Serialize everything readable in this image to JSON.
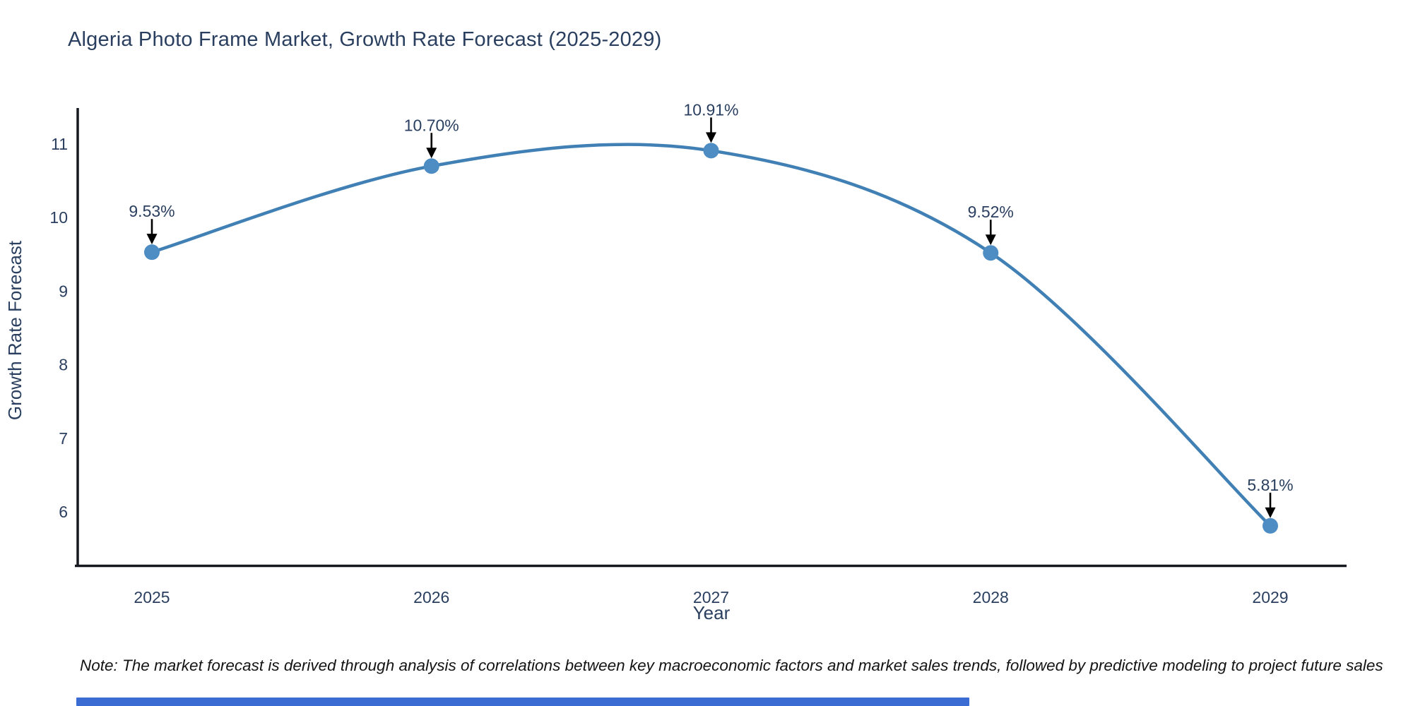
{
  "title": "Algeria Photo Frame Market, Growth Rate Forecast (2025-2029)",
  "note": "Note: The market forecast is derived through analysis of correlations between key macroeconomic factors and market sales trends, followed by predictive modeling to project future sales",
  "colors": {
    "title_text": "#2a3f5f",
    "tick_text": "#2a3f5f",
    "axis_title_text": "#2a3f5f",
    "annotation_text": "#2a3f5f",
    "spine": "#15181e",
    "line": "#4180b4",
    "marker": "#4e8cc4",
    "arrow": "#000000",
    "bottom_bar": "#3a6cd4",
    "background": "#ffffff"
  },
  "chart_data": {
    "type": "line",
    "line_shape": "spline",
    "title": "Algeria Photo Frame Market, Growth Rate Forecast (2025-2029)",
    "xlabel": "Year",
    "ylabel": "Growth Rate Forecast",
    "x": [
      2025,
      2026,
      2027,
      2028,
      2029
    ],
    "values": [
      9.53,
      10.7,
      10.91,
      9.52,
      5.81
    ],
    "point_labels": [
      "9.53%",
      "10.70%",
      "10.91%",
      "9.52%",
      "5.81%"
    ],
    "xticklabels": [
      "2025",
      "2026",
      "2027",
      "2028",
      "2029"
    ],
    "yticks": [
      6,
      7,
      8,
      9,
      10,
      11
    ],
    "xlim": [
      2024.73,
      2029.27
    ],
    "ylim": [
      5.3,
      11.5
    ],
    "grid": false,
    "legend": "none",
    "annotations_have_arrows": true
  }
}
